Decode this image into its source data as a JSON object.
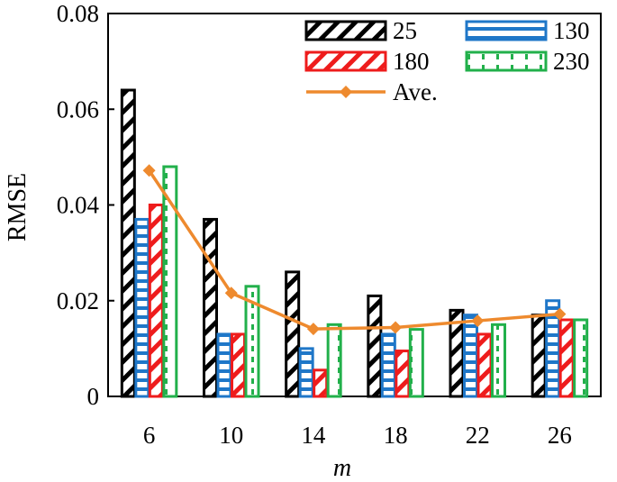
{
  "chart_data": {
    "type": "bar",
    "xlabel": "m",
    "ylabel": "RMSE",
    "ylim": [
      0,
      0.08
    ],
    "yticks": [
      "0",
      "0.02",
      "0.04",
      "0.06",
      "0.08"
    ],
    "categories": [
      "6",
      "10",
      "14",
      "18",
      "22",
      "26"
    ],
    "series": [
      {
        "name": "25",
        "color": "#000000",
        "pattern": "diagonal-hatch",
        "values": [
          0.064,
          0.037,
          0.026,
          0.021,
          0.018,
          0.017
        ]
      },
      {
        "name": "130",
        "color": "#1f77c8",
        "pattern": "horizontal-lines",
        "values": [
          0.037,
          0.013,
          0.01,
          0.013,
          0.017,
          0.02
        ]
      },
      {
        "name": "180",
        "color": "#ee1c1c",
        "pattern": "diagonal-hatch",
        "values": [
          0.04,
          0.013,
          0.0055,
          0.0095,
          0.013,
          0.016
        ]
      },
      {
        "name": "230",
        "color": "#22b04b",
        "pattern": "vertical-ticks",
        "values": [
          0.048,
          0.023,
          0.015,
          0.014,
          0.015,
          0.016
        ]
      }
    ],
    "line": {
      "name": "Ave.",
      "color": "#ee8a2e",
      "marker": "diamond",
      "values": [
        0.0472,
        0.0216,
        0.0141,
        0.0144,
        0.0158,
        0.0172
      ]
    },
    "legend_position": "top-right",
    "grid": false
  }
}
